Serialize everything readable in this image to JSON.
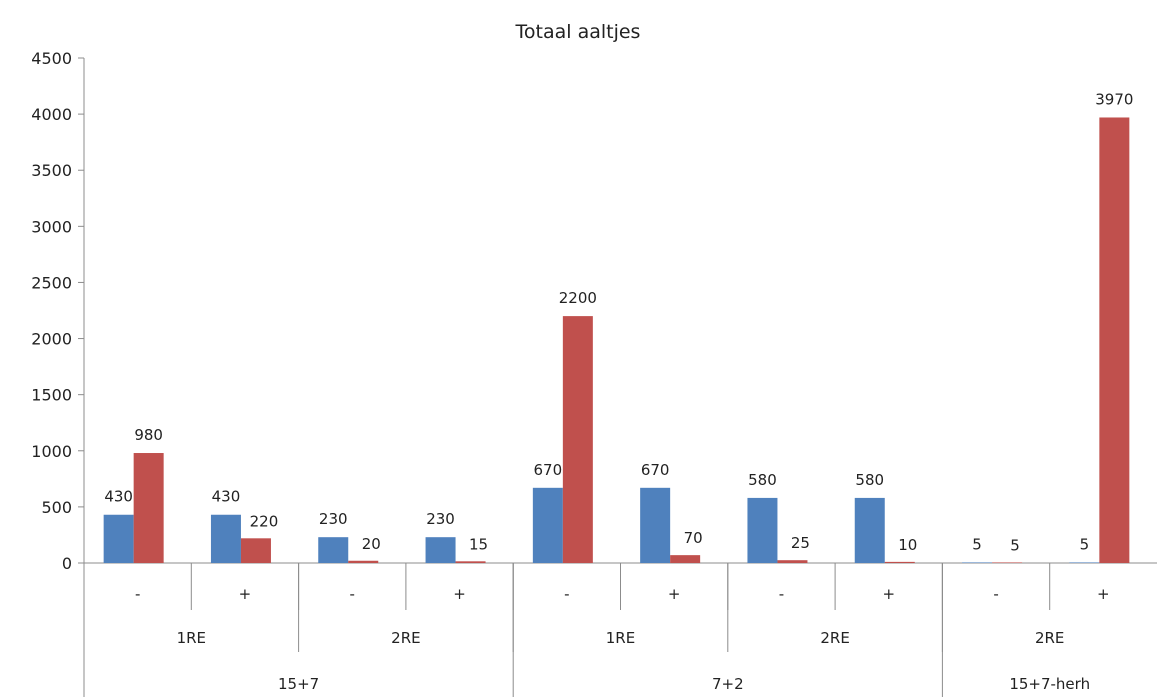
{
  "chart_data": {
    "type": "bar",
    "title": "Totaal aaltjes",
    "ylim": [
      0,
      4500
    ],
    "yticks": [
      0,
      500,
      1000,
      1500,
      2000,
      2500,
      3000,
      3500,
      4000,
      4500
    ],
    "grid": false,
    "legend": "none",
    "categories": [
      {
        "group": "15+7",
        "sub": "1RE",
        "label": "-"
      },
      {
        "group": "15+7",
        "sub": "1RE",
        "label": "+"
      },
      {
        "group": "15+7",
        "sub": "2RE",
        "label": "-"
      },
      {
        "group": "15+7",
        "sub": "2RE",
        "label": "+"
      },
      {
        "group": "7+2",
        "sub": "1RE",
        "label": "-"
      },
      {
        "group": "7+2",
        "sub": "1RE",
        "label": "+"
      },
      {
        "group": "7+2",
        "sub": "2RE",
        "label": "-"
      },
      {
        "group": "7+2",
        "sub": "2RE",
        "label": "+"
      },
      {
        "group": "15+7-herh",
        "sub": "2RE",
        "label": "-"
      },
      {
        "group": "15+7-herh",
        "sub": "2RE",
        "label": "+"
      }
    ],
    "sub_groups": [
      {
        "label": "1RE",
        "start": 0,
        "end": 2
      },
      {
        "label": "2RE",
        "start": 2,
        "end": 4
      },
      {
        "label": "1RE",
        "start": 4,
        "end": 6
      },
      {
        "label": "2RE",
        "start": 6,
        "end": 8
      },
      {
        "label": "2RE",
        "start": 8,
        "end": 10
      }
    ],
    "groups": [
      {
        "label": "15+7",
        "start": 0,
        "end": 4
      },
      {
        "label": "7+2",
        "start": 4,
        "end": 8
      },
      {
        "label": "15+7-herh",
        "start": 8,
        "end": 10
      }
    ],
    "series": [
      {
        "color": "#4f81bd",
        "values": [
          430,
          430,
          230,
          230,
          670,
          670,
          580,
          580,
          5,
          5
        ]
      },
      {
        "color": "#c0504d",
        "values": [
          980,
          220,
          20,
          15,
          2200,
          70,
          25,
          10,
          5,
          3970
        ]
      }
    ],
    "data_labels": [
      [
        "430",
        "430",
        "230",
        "230",
        "670",
        "670",
        "580",
        "580",
        "5",
        "5"
      ],
      [
        "980",
        "220",
        "20",
        "15",
        "2200",
        "70",
        "25",
        "10",
        "5",
        "3970"
      ]
    ]
  }
}
